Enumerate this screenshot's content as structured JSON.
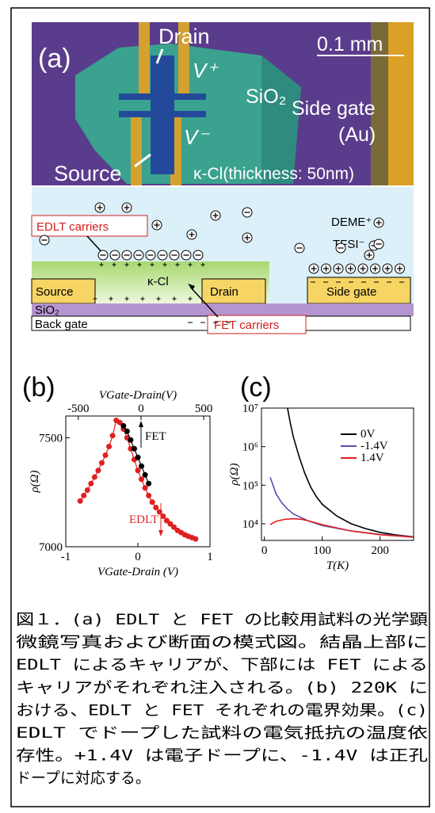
{
  "panel_a": {
    "label": "(a)",
    "photo": {
      "drain": "Drain",
      "v_plus": "V⁺",
      "sio2": "SiO₂",
      "scale": "0.1 mm",
      "side_gate": "Side gate",
      "au": "(Au)",
      "v_minus": "V⁻",
      "source": "Source",
      "kcl": "κ-Cl(thickness: 50nm)"
    },
    "schematic": {
      "deme": "DEME⁺",
      "tfsi": "TFSI⁻",
      "edlt_carriers": "EDLT carriers",
      "kcl": "κ-Cl",
      "source": "Source",
      "drain": "Drain",
      "side_gate": "Side gate",
      "sio2": "SiO₂",
      "fet_carriers": "FET carriers",
      "back_gate": "Back gate"
    }
  },
  "chart_data": [
    {
      "type": "line",
      "label": "(b)",
      "xlabel": "VGate-Drain (V)",
      "x2label": "VGate-Drain(V)",
      "ylabel": "ρ(Ω)",
      "markers": true,
      "xlim": [
        -1,
        1
      ],
      "xticks": [
        -1,
        0,
        1
      ],
      "x2lim": [
        -600,
        550
      ],
      "x2ticks": [
        -500,
        0,
        500
      ],
      "ylim": [
        7000,
        7600
      ],
      "yticks": [
        7000,
        7500
      ],
      "series": [
        {
          "name": "EDLT",
          "color": "#e02020",
          "x": [
            -0.8,
            -0.75,
            -0.7,
            -0.65,
            -0.6,
            -0.55,
            -0.5,
            -0.45,
            -0.4,
            -0.35,
            -0.3,
            -0.25,
            -0.2,
            -0.15,
            -0.1,
            -0.05,
            0,
            0.05,
            0.1,
            0.15,
            0.2,
            0.25,
            0.3,
            0.35,
            0.4,
            0.45,
            0.5,
            0.55,
            0.6,
            0.65,
            0.7,
            0.75,
            0.8
          ],
          "values": [
            7210,
            7235,
            7260,
            7290,
            7320,
            7350,
            7385,
            7420,
            7460,
            7510,
            7580,
            7570,
            7540,
            7500,
            7450,
            7400,
            7350,
            7310,
            7270,
            7235,
            7205,
            7180,
            7160,
            7140,
            7120,
            7105,
            7090,
            7075,
            7065,
            7055,
            7048,
            7042,
            7036
          ]
        },
        {
          "name": "FET",
          "color": "#000000",
          "x": [
            -0.2,
            -0.15,
            -0.1,
            -0.05,
            0,
            0.05,
            0.1,
            0.15
          ],
          "values": [
            7555,
            7530,
            7490,
            7450,
            7410,
            7370,
            7330,
            7290
          ]
        }
      ]
    },
    {
      "type": "line",
      "label": "(c)",
      "xlabel": "T(K)",
      "ylabel": "ρ(Ω)",
      "log_y": true,
      "legend": "upper right",
      "xlim": [
        -5,
        258
      ],
      "xticks": [
        0,
        100,
        200
      ],
      "ylim": [
        3700,
        10000000
      ],
      "yticks": [
        {
          "value": 10000,
          "label": "10⁴"
        },
        {
          "value": 100000,
          "label": "10⁵"
        },
        {
          "value": 1000000,
          "label": "10⁶"
        },
        {
          "value": 10000000,
          "label": "10⁷"
        }
      ],
      "series": [
        {
          "name": "0V",
          "color": "#000000",
          "x": [
            40,
            45,
            50,
            55,
            60,
            70,
            80,
            90,
            100,
            125,
            150,
            175,
            200,
            225,
            257
          ],
          "values": [
            10000000,
            4000000,
            1800000,
            1000000,
            550000,
            200000,
            90000,
            50000,
            32000,
            16000,
            10000,
            7500,
            6000,
            5200,
            4600
          ]
        },
        {
          "name": "-1.4V",
          "color": "#5a4fb0",
          "x": [
            10,
            15,
            20,
            30,
            40,
            50,
            75,
            100,
            150,
            200,
            257
          ],
          "values": [
            160000,
            100000,
            60000,
            35000,
            24000,
            18000,
            12000,
            9000,
            6500,
            5300,
            4600
          ]
        },
        {
          "name": "1.4V",
          "color": "#e02020",
          "x": [
            10,
            20,
            35,
            50,
            65,
            80,
            100,
            150,
            200,
            257
          ],
          "values": [
            9500,
            11500,
            13000,
            13500,
            13000,
            11500,
            9500,
            6500,
            5200,
            4500
          ]
        }
      ]
    }
  ],
  "caption": {
    "lines": [
      "図１．(a) EDLT と FET の比較用試料の光学顕",
      "微鏡写真および断面の模式図。結晶上部に",
      "EDLT によるキャリアが、下部には FET による",
      "キャリアがそれぞれ注入される。(b) 220K に",
      "おける、EDLT と FET それぞれの電界効果。(c)",
      "EDLT でドープした試料の電気抵抗の温度依",
      "存性。+1.4V は電子ドープに、-1.4V は正孔",
      "ドープに対応する。"
    ]
  }
}
